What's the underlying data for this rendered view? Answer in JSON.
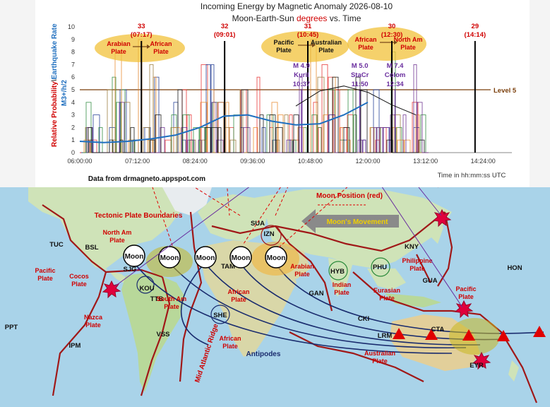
{
  "chart_data": {
    "type": "line",
    "title_line1": "Incoming Energy by Magnetic Anomaly 2026-08-10",
    "title_line2_a": "Moon-Earth-Sun ",
    "title_line2_b": "degrees",
    "title_line2_c": " vs. Time",
    "ylabel_red": "Relative Probability",
    "ylabel_sep": "\\",
    "ylabel_blue": "Earthquake Rate",
    "ylabel2": "M3+/h/2",
    "xlabel": "Time in hh:mm:ss UTC",
    "source": "Data from drmagneto.appspot.com",
    "ylim": [
      0,
      10
    ],
    "yticks": [
      "0",
      "1",
      "2",
      "3",
      "4",
      "5",
      "6",
      "7",
      "8",
      "9",
      "10"
    ],
    "xticks": [
      {
        "label": "06:00:00",
        "h": 6.0
      },
      {
        "label": "07:12:00",
        "h": 7.2
      },
      {
        "label": "08:24:00",
        "h": 8.4
      },
      {
        "label": "09:36:00",
        "h": 9.6
      },
      {
        "label": "10:48:00",
        "h": 10.8
      },
      {
        "label": "12:00:00",
        "h": 12.0
      },
      {
        "label": "13:12:00",
        "h": 13.2
      },
      {
        "label": "14:24:00",
        "h": 14.4
      }
    ],
    "xlim": [
      6.0,
      15.0
    ],
    "level_line": {
      "value": 5,
      "label": "Level 5",
      "color": "#7a3e0a"
    },
    "events": [
      {
        "deg": "33",
        "time": "(07:17)",
        "h": 7.283
      },
      {
        "deg": "32",
        "time": "(09:01)",
        "h": 9.017
      },
      {
        "deg": "31",
        "time": "(10:45)",
        "h": 10.75
      },
      {
        "deg": "30",
        "time": "(12:30)",
        "h": 12.5
      },
      {
        "deg": "29",
        "time": "(14:14)",
        "h": 14.233
      }
    ],
    "plate_pairs": [
      {
        "from": "Arabian Plate",
        "to": "African Plate"
      },
      {
        "from": "Pacific Plate",
        "to": "Australian Plate"
      },
      {
        "from": "African Plate",
        "to": "North Am Plate"
      }
    ],
    "quakes": [
      {
        "mag": "M 4.9",
        "place": "Kuril",
        "time": "10:37",
        "h": 10.617
      },
      {
        "mag": "M 5.0",
        "place": "StaCr",
        "time": "11:50",
        "h": 11.833
      },
      {
        "mag": "M 7.4",
        "place": "Colom",
        "time": "12:34",
        "h": 12.567
      }
    ],
    "blue_curve": {
      "x": [
        6.0,
        6.5,
        7.0,
        7.5,
        8.0,
        8.5,
        9.0,
        9.5,
        10.0,
        10.5,
        11.0,
        11.5,
        12.0
      ],
      "y": [
        0.9,
        0.8,
        0.9,
        1.1,
        1.4,
        2.0,
        2.9,
        3.0,
        2.5,
        2.2,
        2.3,
        3.0,
        4.0
      ]
    },
    "black_arc": {
      "x": [
        10.5,
        11.0,
        11.5,
        12.0,
        12.5,
        13.0
      ],
      "y": [
        3.7,
        4.9,
        5.3,
        4.8,
        3.8,
        3.0
      ]
    },
    "series_colors": [
      "#e63030",
      "#1f3a93",
      "#2e8b3e",
      "#e88a2e",
      "#9a7a3a",
      "#6a2e8e",
      "#111111"
    ]
  },
  "map": {
    "moon_label": "Moon",
    "moon_position": "Moon Position (red)",
    "moons_movement": "Moon's Movement",
    "tectonic": "Tectonic Plate Boundaries",
    "antipodes": "Antipodes",
    "mid_atlantic": "Mid Atlantic Ridge",
    "labels": [
      {
        "t": "TUC",
        "k": "black"
      },
      {
        "t": "BSL",
        "k": "black"
      },
      {
        "t": "SJG",
        "k": "black"
      },
      {
        "t": "KOU",
        "k": "black"
      },
      {
        "t": "TTB",
        "k": "black"
      },
      {
        "t": "VSS",
        "k": "black"
      },
      {
        "t": "PPT",
        "k": "black"
      },
      {
        "t": "IPM",
        "k": "black"
      },
      {
        "t": "SUA",
        "k": "black"
      },
      {
        "t": "IZN",
        "k": "black"
      },
      {
        "t": "TAM",
        "k": "black"
      },
      {
        "t": "HYB",
        "k": "black"
      },
      {
        "t": "PHU",
        "k": "black"
      },
      {
        "t": "GAN",
        "k": "black"
      },
      {
        "t": "CKI",
        "k": "black"
      },
      {
        "t": "KNY",
        "k": "black"
      },
      {
        "t": "GUA",
        "k": "black"
      },
      {
        "t": "HON",
        "k": "black"
      },
      {
        "t": "CTA",
        "k": "black"
      },
      {
        "t": "LRM",
        "k": "black"
      },
      {
        "t": "EYR",
        "k": "black"
      },
      {
        "t": "SHE",
        "k": "black"
      },
      {
        "t": "Pacific Plate",
        "k": "red"
      },
      {
        "t": "North Am Plate",
        "k": "red"
      },
      {
        "t": "Cocos Plate",
        "k": "red"
      },
      {
        "t": "Nazca Plate",
        "k": "red"
      },
      {
        "t": "South Am Plate",
        "k": "red"
      },
      {
        "t": "African Plate",
        "k": "red"
      },
      {
        "t": "African Plate",
        "k": "red"
      },
      {
        "t": "Arabian Plate",
        "k": "red"
      },
      {
        "t": "Indian Plate",
        "k": "red"
      },
      {
        "t": "Eurasian Plate",
        "k": "red"
      },
      {
        "t": "Philippine Plate",
        "k": "red"
      },
      {
        "t": "Pacific Plate",
        "k": "red"
      },
      {
        "t": "Australian Plate",
        "k": "red"
      }
    ]
  }
}
